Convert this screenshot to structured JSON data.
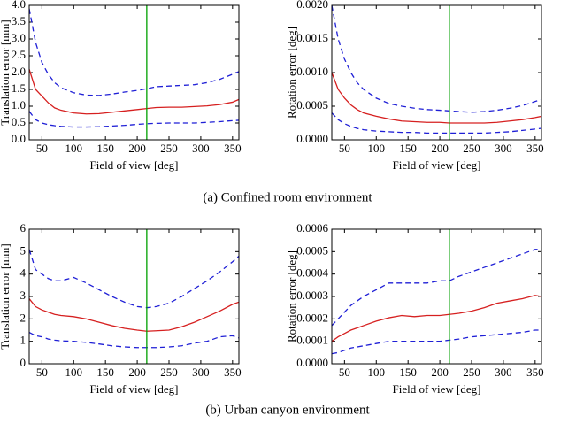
{
  "chart_data": [
    {
      "type": "line",
      "xlabel": "Field of view [deg]",
      "ylabel": "Translation error [mm]",
      "x": [
        30,
        40,
        50,
        60,
        70,
        80,
        100,
        120,
        140,
        160,
        180,
        200,
        215,
        230,
        250,
        270,
        290,
        310,
        330,
        350,
        360
      ],
      "series": [
        {
          "color": "#d62020",
          "dash": false,
          "values": [
            2.1,
            1.5,
            1.3,
            1.1,
            0.95,
            0.88,
            0.8,
            0.77,
            0.78,
            0.82,
            0.86,
            0.9,
            0.93,
            0.96,
            0.97,
            0.97,
            0.99,
            1.01,
            1.05,
            1.12,
            1.2
          ]
        },
        {
          "color": "#1f1fd6",
          "dash": true,
          "values": [
            3.9,
            2.9,
            2.3,
            1.95,
            1.7,
            1.55,
            1.4,
            1.33,
            1.32,
            1.36,
            1.42,
            1.47,
            1.52,
            1.58,
            1.6,
            1.62,
            1.64,
            1.7,
            1.8,
            1.95,
            2.03
          ]
        },
        {
          "color": "#1f1fd6",
          "dash": true,
          "values": [
            0.85,
            0.6,
            0.5,
            0.45,
            0.42,
            0.4,
            0.38,
            0.38,
            0.39,
            0.41,
            0.43,
            0.46,
            0.48,
            0.49,
            0.5,
            0.5,
            0.5,
            0.52,
            0.54,
            0.57,
            0.58
          ]
        }
      ],
      "vline": 215,
      "vline_color": "#00a000",
      "xlim": [
        30,
        360
      ],
      "xticks": [
        50,
        100,
        150,
        200,
        250,
        300,
        350
      ],
      "ylim": [
        0,
        4
      ],
      "yticks": [
        {
          "value": 0,
          "label": "0.0"
        },
        0.5,
        {
          "value": 1,
          "label": "1.0"
        },
        1.5,
        {
          "value": 2,
          "label": "2.0"
        },
        2.5,
        {
          "value": 3,
          "label": "3.0"
        },
        3.5,
        {
          "value": 4,
          "label": "4.0"
        }
      ]
    },
    {
      "type": "line",
      "xlabel": "Field of view [deg]",
      "ylabel": "Rotation error [deg]",
      "x": [
        30,
        40,
        50,
        60,
        70,
        80,
        100,
        120,
        140,
        160,
        180,
        200,
        215,
        230,
        250,
        270,
        290,
        310,
        330,
        350,
        360
      ],
      "series": [
        {
          "color": "#d62020",
          "dash": false,
          "values": [
            0.001,
            0.00075,
            0.00062,
            0.00052,
            0.00045,
            0.0004,
            0.00035,
            0.00031,
            0.00028,
            0.00027,
            0.00026,
            0.00026,
            0.00025,
            0.00025,
            0.00025,
            0.00025,
            0.00026,
            0.00028,
            0.0003,
            0.00033,
            0.00035
          ]
        },
        {
          "color": "#1f1fd6",
          "dash": true,
          "values": [
            0.002,
            0.0015,
            0.0012,
            0.001,
            0.00085,
            0.00075,
            0.00062,
            0.00054,
            0.0005,
            0.00047,
            0.00045,
            0.00044,
            0.00043,
            0.00042,
            0.00041,
            0.00042,
            0.00044,
            0.00047,
            0.00051,
            0.00057,
            0.0006
          ]
        },
        {
          "color": "#1f1fd6",
          "dash": true,
          "values": [
            0.0004,
            0.0003,
            0.00024,
            0.0002,
            0.00017,
            0.00015,
            0.00013,
            0.00012,
            0.00011,
            0.00011,
            0.0001,
            0.0001,
            0.0001,
            0.0001,
            0.0001,
            0.0001,
            0.00011,
            0.00012,
            0.00014,
            0.00016,
            0.00017
          ]
        }
      ],
      "vline": 215,
      "vline_color": "#00a000",
      "xlim": [
        30,
        360
      ],
      "xticks": [
        50,
        100,
        150,
        200,
        250,
        300,
        350
      ],
      "ylim": [
        0,
        0.002
      ],
      "yticks": [
        {
          "value": 0,
          "label": "0.0000"
        },
        {
          "value": 0.0005,
          "label": "0.0005"
        },
        {
          "value": 0.001,
          "label": "0.0010"
        },
        {
          "value": 0.0015,
          "label": "0.0015"
        },
        {
          "value": 0.002,
          "label": "0.0020"
        }
      ]
    },
    {
      "type": "line",
      "xlabel": "Field of view [deg]",
      "ylabel": "Translation error [mm]",
      "x": [
        30,
        40,
        50,
        60,
        70,
        80,
        100,
        120,
        140,
        160,
        180,
        200,
        215,
        230,
        250,
        270,
        290,
        310,
        330,
        350,
        360
      ],
      "series": [
        {
          "color": "#d62020",
          "dash": false,
          "values": [
            2.9,
            2.55,
            2.4,
            2.3,
            2.2,
            2.15,
            2.1,
            2.0,
            1.85,
            1.7,
            1.58,
            1.5,
            1.45,
            1.47,
            1.5,
            1.65,
            1.85,
            2.1,
            2.35,
            2.65,
            2.75
          ]
        },
        {
          "color": "#1f1fd6",
          "dash": true,
          "values": [
            5.1,
            4.2,
            4.0,
            3.8,
            3.7,
            3.7,
            3.85,
            3.6,
            3.3,
            3.0,
            2.75,
            2.55,
            2.5,
            2.55,
            2.7,
            3.0,
            3.35,
            3.7,
            4.1,
            4.55,
            4.8
          ]
        },
        {
          "color": "#1f1fd6",
          "dash": true,
          "values": [
            1.4,
            1.25,
            1.2,
            1.1,
            1.05,
            1.02,
            1.0,
            0.95,
            0.88,
            0.8,
            0.75,
            0.72,
            0.72,
            0.72,
            0.75,
            0.8,
            0.92,
            1.0,
            1.2,
            1.25,
            1.15
          ]
        }
      ],
      "vline": 215,
      "vline_color": "#00a000",
      "xlim": [
        30,
        360
      ],
      "xticks": [
        50,
        100,
        150,
        200,
        250,
        300,
        350
      ],
      "ylim": [
        0,
        6
      ],
      "yticks": [
        0,
        1,
        2,
        3,
        4,
        5,
        6
      ]
    },
    {
      "type": "line",
      "xlabel": "Field of view [deg]",
      "ylabel": "Rotation error [deg]",
      "x": [
        30,
        40,
        50,
        60,
        70,
        80,
        100,
        120,
        140,
        160,
        180,
        200,
        215,
        230,
        250,
        270,
        290,
        310,
        330,
        350,
        360
      ],
      "series": [
        {
          "color": "#d62020",
          "dash": false,
          "values": [
            0.0001,
            0.00012,
            0.000135,
            0.00015,
            0.00016,
            0.00017,
            0.00019,
            0.000205,
            0.000215,
            0.00021,
            0.000215,
            0.000215,
            0.00022,
            0.000225,
            0.000235,
            0.00025,
            0.00027,
            0.00028,
            0.00029,
            0.000305,
            0.0003
          ]
        },
        {
          "color": "#1f1fd6",
          "dash": true,
          "values": [
            0.00017,
            0.0002,
            0.00023,
            0.00026,
            0.00028,
            0.0003,
            0.00033,
            0.00036,
            0.00036,
            0.00036,
            0.00036,
            0.00037,
            0.00037,
            0.00039,
            0.00041,
            0.00043,
            0.00045,
            0.00047,
            0.00049,
            0.00051,
            0.00051
          ]
        },
        {
          "color": "#1f1fd6",
          "dash": true,
          "values": [
            4.5e-05,
            5e-05,
            6e-05,
            7e-05,
            7.5e-05,
            8e-05,
            9e-05,
            0.0001,
            0.0001,
            0.0001,
            0.0001,
            0.0001,
            0.000105,
            0.00011,
            0.00012,
            0.000125,
            0.00013,
            0.000135,
            0.00014,
            0.00015,
            0.00015
          ]
        }
      ],
      "vline": 215,
      "vline_color": "#00a000",
      "xlim": [
        30,
        360
      ],
      "xticks": [
        50,
        100,
        150,
        200,
        250,
        300,
        350
      ],
      "ylim": [
        0,
        0.0006
      ],
      "yticks": [
        {
          "value": 0,
          "label": "0.0000"
        },
        {
          "value": 0.0001,
          "label": "0.0001"
        },
        {
          "value": 0.0002,
          "label": "0.0002"
        },
        {
          "value": 0.0003,
          "label": "0.0003"
        },
        {
          "value": 0.0004,
          "label": "0.0004"
        },
        {
          "value": 0.0005,
          "label": "0.0005"
        },
        {
          "value": 0.0006,
          "label": "0.0006"
        }
      ]
    }
  ],
  "captions": [
    "(a) Confined room environment",
    "(b) Urban canyon environment"
  ]
}
